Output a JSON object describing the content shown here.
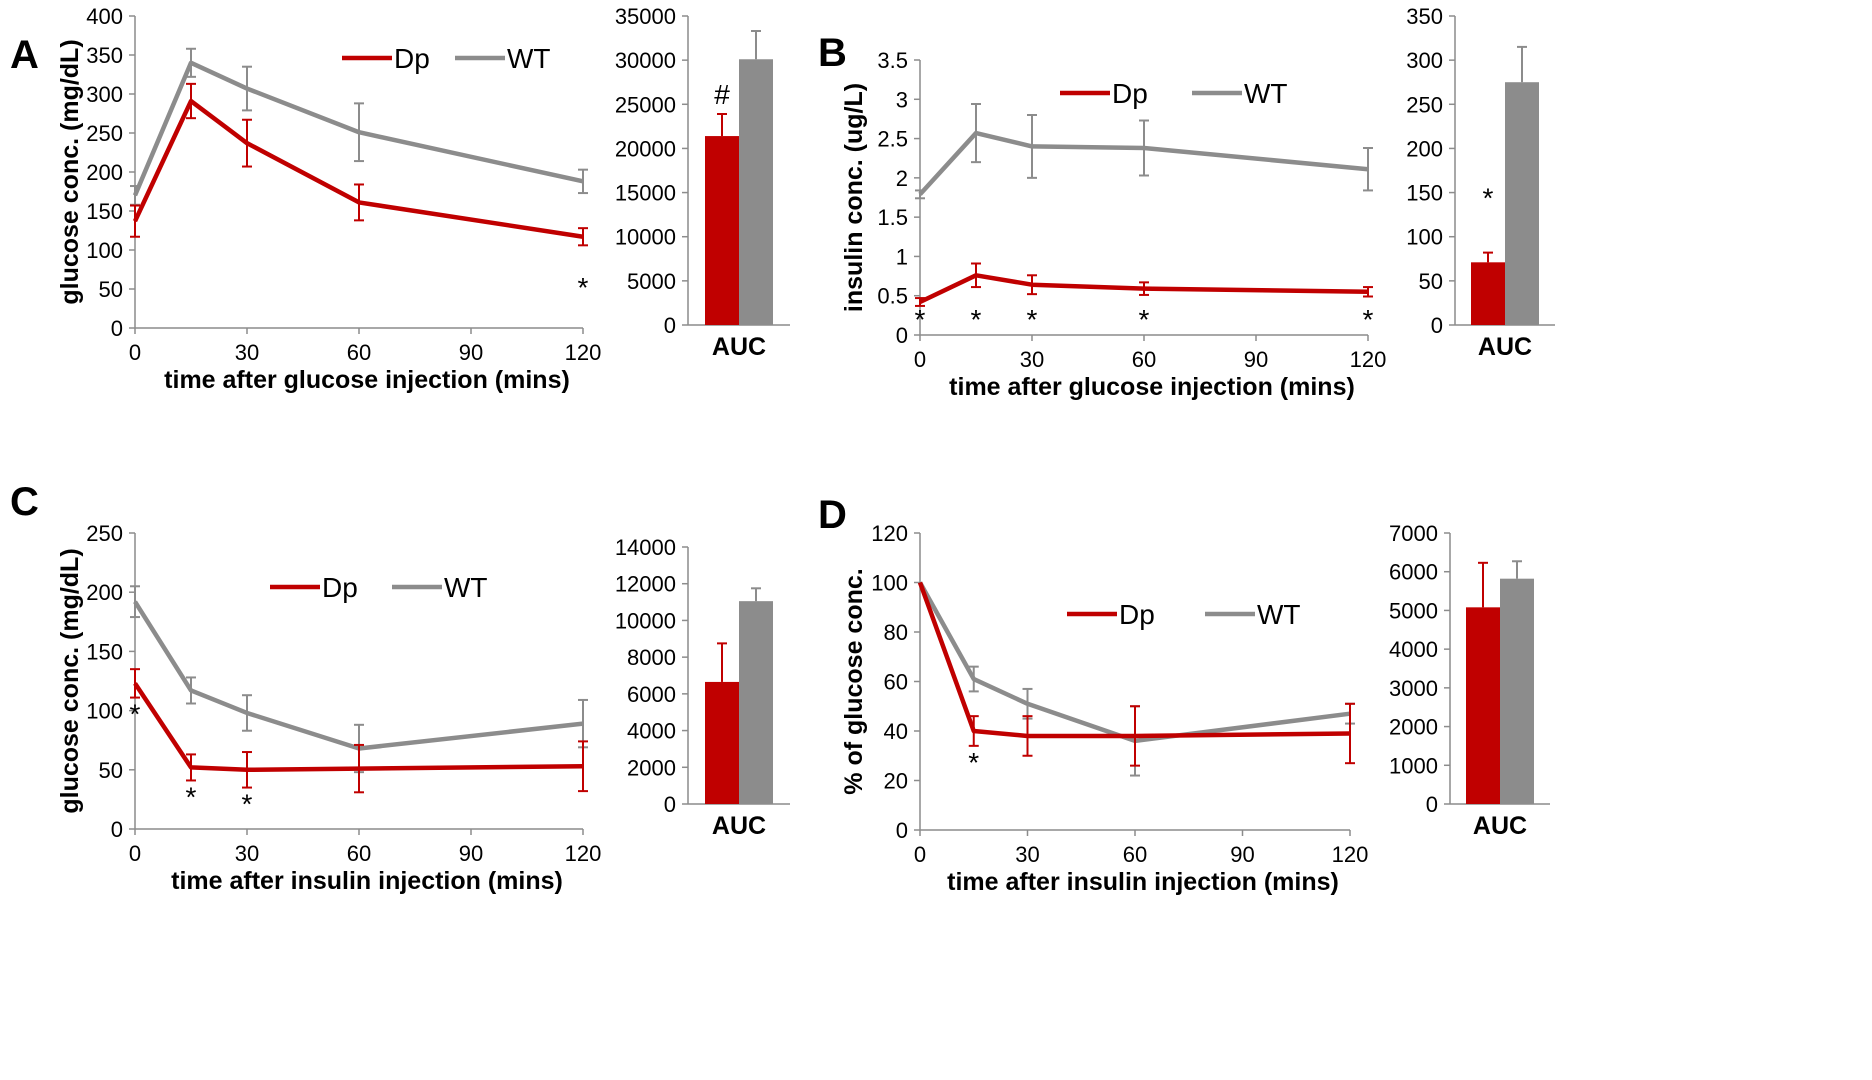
{
  "colors": {
    "dp": "#c00000",
    "wt": "#8c8c8c",
    "axis": "#8c8c8c"
  },
  "chart_data": [
    {
      "panel": "A",
      "type": "line",
      "xlabel": "time after glucose injection (mins)",
      "ylabel": "glucose conc. (mg/dL)",
      "xlim": [
        0,
        120
      ],
      "xticks": [
        "0",
        "30",
        "60",
        "90",
        "120"
      ],
      "ylim": [
        0,
        400
      ],
      "yticks": [
        "0",
        "50",
        "100",
        "150",
        "200",
        "250",
        "300",
        "350",
        "400"
      ],
      "x": [
        0,
        15,
        30,
        60,
        120
      ],
      "series": [
        {
          "name": "Dp",
          "values": [
            137,
            291,
            237,
            161,
            117
          ],
          "errors": [
            20,
            22,
            30,
            23,
            11
          ]
        },
        {
          "name": "WT",
          "values": [
            170,
            340,
            307,
            251,
            188
          ],
          "errors": [
            12,
            18,
            28,
            37,
            15
          ]
        }
      ],
      "annotations": [
        {
          "text": "*",
          "x": 120
        }
      ],
      "bar": {
        "type": "bar",
        "categories": [
          "AUC"
        ],
        "ylim": [
          0,
          35000
        ],
        "yticks": [
          "0",
          "5000",
          "10000",
          "15000",
          "20000",
          "25000",
          "30000",
          "35000"
        ],
        "series": [
          {
            "name": "Dp",
            "values": [
              21400
            ],
            "errors": [
              2500
            ]
          },
          {
            "name": "WT",
            "values": [
              30100
            ],
            "errors": [
              3200
            ]
          }
        ],
        "annotation": "#"
      }
    },
    {
      "panel": "B",
      "type": "line",
      "xlabel": "time after glucose injection (mins)",
      "ylabel": "insulin conc. (ug/L)",
      "xlim": [
        0,
        120
      ],
      "xticks": [
        "0",
        "30",
        "60",
        "90",
        "120"
      ],
      "ylim": [
        0,
        3.5
      ],
      "yticks": [
        "0",
        "0.5",
        "1",
        "1.5",
        "2",
        "2.5",
        "3",
        "3.5"
      ],
      "x": [
        0,
        15,
        30,
        60,
        120
      ],
      "series": [
        {
          "name": "Dp",
          "values": [
            0.42,
            0.76,
            0.64,
            0.59,
            0.55
          ],
          "errors": [
            0.05,
            0.15,
            0.12,
            0.08,
            0.06
          ]
        },
        {
          "name": "WT",
          "values": [
            1.79,
            2.57,
            2.4,
            2.38,
            2.11
          ],
          "errors": [
            0.05,
            0.37,
            0.4,
            0.35,
            0.27
          ]
        }
      ],
      "annotations": [
        {
          "text": "*",
          "x": 0
        },
        {
          "text": "*",
          "x": 15
        },
        {
          "text": "*",
          "x": 30
        },
        {
          "text": "*",
          "x": 60
        },
        {
          "text": "*",
          "x": 120
        }
      ],
      "bar": {
        "type": "bar",
        "categories": [
          "AUC"
        ],
        "ylim": [
          0,
          350
        ],
        "yticks": [
          "0",
          "50",
          "100",
          "150",
          "200",
          "250",
          "300",
          "350"
        ],
        "series": [
          {
            "name": "Dp",
            "values": [
              71
            ],
            "errors": [
              11
            ]
          },
          {
            "name": "WT",
            "values": [
              275
            ],
            "errors": [
              40
            ]
          }
        ],
        "annotation": "*"
      }
    },
    {
      "panel": "C",
      "type": "line",
      "xlabel": "time after insulin injection (mins)",
      "ylabel": "glucose conc. (mg/dL)",
      "xlim": [
        0,
        120
      ],
      "xticks": [
        "0",
        "30",
        "60",
        "90",
        "120"
      ],
      "ylim": [
        0,
        250
      ],
      "yticks": [
        "0",
        "50",
        "100",
        "150",
        "200",
        "250"
      ],
      "x": [
        0,
        15,
        30,
        60,
        120
      ],
      "series": [
        {
          "name": "Dp",
          "values": [
            123,
            52,
            50,
            51,
            53
          ],
          "errors": [
            12,
            11,
            15,
            20,
            21
          ]
        },
        {
          "name": "WT",
          "values": [
            192,
            117,
            98,
            68,
            89
          ],
          "errors": [
            13,
            11,
            15,
            20,
            20
          ]
        }
      ],
      "annotations": [
        {
          "text": "*",
          "x": 0
        },
        {
          "text": "*",
          "x": 15
        },
        {
          "text": "*",
          "x": 30
        }
      ],
      "bar": {
        "type": "bar",
        "categories": [
          "AUC"
        ],
        "ylim": [
          0,
          14000
        ],
        "yticks": [
          "0",
          "2000",
          "4000",
          "6000",
          "8000",
          "10000",
          "12000",
          "14000"
        ],
        "series": [
          {
            "name": "Dp",
            "values": [
              6650
            ],
            "errors": [
              2100
            ]
          },
          {
            "name": "WT",
            "values": [
              11050
            ],
            "errors": [
              700
            ]
          }
        ],
        "annotation": ""
      }
    },
    {
      "panel": "D",
      "type": "line",
      "xlabel": "time after insulin injection (mins)",
      "ylabel": "% of glucose conc.",
      "xlim": [
        0,
        120
      ],
      "xticks": [
        "0",
        "30",
        "60",
        "90",
        "120"
      ],
      "ylim": [
        0,
        120
      ],
      "yticks": [
        "0",
        "20",
        "40",
        "60",
        "80",
        "100",
        "120"
      ],
      "x": [
        0,
        15,
        30,
        60,
        120
      ],
      "series": [
        {
          "name": "Dp",
          "values": [
            100,
            40,
            38,
            38,
            39
          ],
          "errors": [
            0,
            6,
            8,
            12,
            12
          ]
        },
        {
          "name": "WT",
          "values": [
            100,
            61,
            51,
            36,
            47
          ],
          "errors": [
            0,
            5,
            6,
            14,
            4
          ]
        }
      ],
      "annotations": [
        {
          "text": "*",
          "x": 15
        }
      ],
      "bar": {
        "type": "bar",
        "categories": [
          "AUC"
        ],
        "ylim": [
          0,
          7000
        ],
        "yticks": [
          "0",
          "1000",
          "2000",
          "3000",
          "4000",
          "5000",
          "6000",
          "7000"
        ],
        "series": [
          {
            "name": "Dp",
            "values": [
              5080
            ],
            "errors": [
              1150
            ]
          },
          {
            "name": "WT",
            "values": [
              5820
            ],
            "errors": [
              450
            ]
          }
        ],
        "annotation": ""
      }
    }
  ]
}
